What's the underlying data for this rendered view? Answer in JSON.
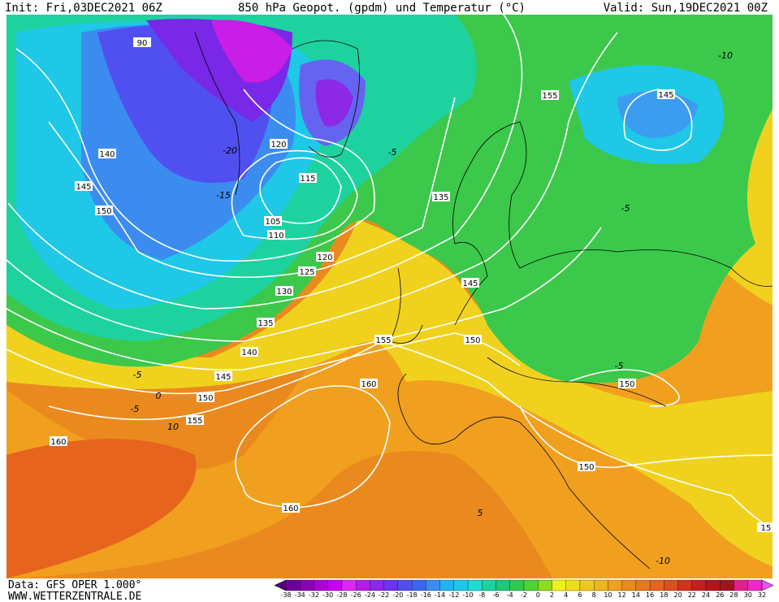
{
  "header": {
    "init": "Init: Fri,03DEC2021 06Z",
    "title": "850 hPa Geopot. (gpdm) und Temperatur (°C)",
    "valid": "Valid: Sun,19DEC2021 00Z"
  },
  "footer": {
    "source": "Data: GFS OPER 1.000°",
    "website": "WWW.WETTERZENTRALE.DE"
  },
  "geopotential_labels": [
    "90",
    "140",
    "145",
    "150",
    "120",
    "115",
    "105",
    "110",
    "120",
    "125",
    "130",
    "135",
    "140",
    "145",
    "150",
    "155",
    "160",
    "160",
    "155",
    "160",
    "155",
    "145",
    "135",
    "145",
    "150",
    "150",
    "150",
    "15"
  ],
  "temperature_labels": [
    "-10",
    "-5",
    "-5",
    "-5",
    "0",
    "-5",
    "10",
    "-10",
    "-5",
    "5",
    "-20",
    "-15"
  ],
  "legend": {
    "ticks": [
      "-38",
      "-34",
      "-32",
      "-30",
      "-28",
      "-26",
      "-24",
      "-22",
      "-20",
      "-18",
      "-16",
      "-14",
      "-12",
      "-10",
      "-8",
      "-6",
      "-4",
      "-2",
      "0",
      "2",
      "4",
      "6",
      "8",
      "10",
      "12",
      "14",
      "16",
      "18",
      "20",
      "22",
      "24",
      "26",
      "28",
      "30",
      "32"
    ],
    "colors": [
      "#500078",
      "#6e0096",
      "#8c00b4",
      "#aa00d2",
      "#c800f0",
      "#dc28f0",
      "#b41ee6",
      "#8c28e6",
      "#6e32f0",
      "#5050f0",
      "#3c64f0",
      "#3c8cf0",
      "#1eb4f0",
      "#1ec8e6",
      "#1edcd2",
      "#1ed2a0",
      "#1ec878",
      "#32c850",
      "#50d232",
      "#8cdc1e",
      "#f0f01e",
      "#f0dc1e",
      "#f0c81e",
      "#f0b41e",
      "#f0a01e",
      "#ea8a1e",
      "#e6781e",
      "#e6641e",
      "#dc501e",
      "#d2321e",
      "#c81e1e",
      "#b4141e",
      "#a0141e",
      "#e61e8c",
      "#f028c8",
      "#f050f0"
    ]
  }
}
